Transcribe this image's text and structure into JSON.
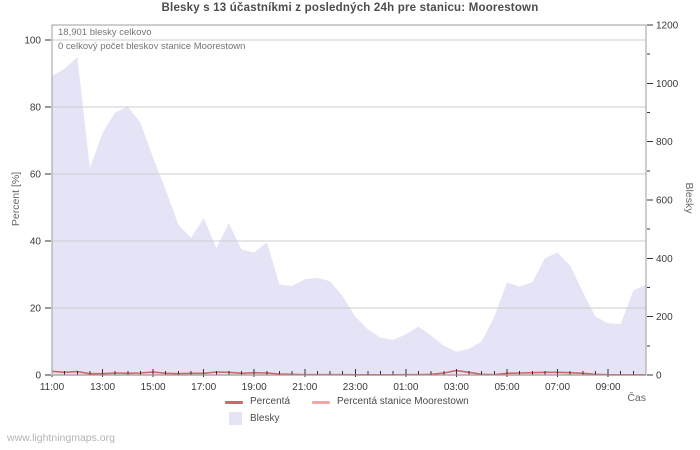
{
  "chart": {
    "title": "Blesky s 13 účastníkmi z posledných 24h pre stanicu: Moorestown",
    "annotation_total": "18,901 blesky celkovo",
    "annotation_station": "0 celkový počet bleskov stanice Moorestown"
  },
  "legend": {
    "percent_label": "Percentá",
    "station_percent_label": "Percentá stanice Moorestown",
    "strikes_label": "Blesky"
  },
  "watermark": "www.lightningmaps.org",
  "colors": {
    "strikes_fill": "#e4e4f6",
    "percent_line": "#cd6868",
    "station_percent_line": "#f3a6a6",
    "gridline": "#cdcdcd",
    "plot_border": "#9e9e9e",
    "tick": "#333333",
    "tick_text": "#3a3a3a"
  },
  "chart_data": {
    "type": "area",
    "title": "Blesky s 13 účastníkmi z posledných 24h pre stanicu: Moorestown",
    "xlabel": "Čas",
    "ylabel_left": "Percent  [%]",
    "ylabel_right": "Blesky",
    "ylim_left": [
      0,
      100
    ],
    "ylim_right": [
      0,
      1200
    ],
    "y_left_ticks": [
      0,
      20,
      40,
      60,
      80,
      100
    ],
    "y_right_ticks": [
      0,
      200,
      400,
      600,
      800,
      1000,
      1200
    ],
    "x_major_tick_labels": [
      "11:00",
      "13:00",
      "15:00",
      "17:00",
      "19:00",
      "21:00",
      "23:00",
      "01:00",
      "03:00",
      "05:00",
      "07:00",
      "09:00"
    ],
    "grid": true,
    "legend_position": "bottom",
    "x": [
      "11:00",
      "11:30",
      "12:00",
      "12:30",
      "13:00",
      "13:30",
      "14:00",
      "14:30",
      "15:00",
      "15:30",
      "16:00",
      "16:30",
      "17:00",
      "17:30",
      "18:00",
      "18:30",
      "19:00",
      "19:30",
      "20:00",
      "20:30",
      "21:00",
      "21:30",
      "22:00",
      "22:30",
      "23:00",
      "23:30",
      "00:00",
      "00:30",
      "01:00",
      "01:30",
      "02:00",
      "02:30",
      "03:00",
      "03:30",
      "04:00",
      "04:30",
      "05:00",
      "05:30",
      "06:00",
      "06:30",
      "07:00",
      "07:30",
      "08:00",
      "08:30",
      "09:00",
      "09:30",
      "10:00",
      "10:30"
    ],
    "series": [
      {
        "name": "Blesky",
        "style": "area",
        "axis": "right",
        "values": [
          1025,
          1050,
          1090,
          710,
          830,
          900,
          920,
          865,
          745,
          635,
          515,
          470,
          538,
          435,
          520,
          430,
          420,
          455,
          310,
          305,
          328,
          333,
          322,
          270,
          200,
          156,
          128,
          120,
          140,
          166,
          135,
          100,
          80,
          90,
          115,
          200,
          318,
          303,
          318,
          400,
          420,
          375,
          285,
          200,
          178,
          175,
          290,
          310
        ]
      },
      {
        "name": "Percentá",
        "style": "line",
        "axis": "left",
        "values": [
          1.1,
          0.8,
          1.0,
          0.4,
          0.4,
          0.6,
          0.5,
          0.6,
          0.9,
          0.5,
          0.4,
          0.5,
          0.5,
          0.9,
          0.8,
          0.5,
          0.7,
          0.6,
          0.3,
          0.2,
          0.1,
          0.1,
          0.1,
          0.1,
          0.05,
          0.05,
          0.05,
          0.05,
          0.1,
          0.1,
          0.2,
          0.6,
          1.3,
          0.8,
          0.2,
          0.1,
          0.5,
          0.6,
          0.7,
          0.8,
          0.8,
          0.7,
          0.5,
          0.2,
          0.05,
          0.05,
          0.05,
          0.05
        ]
      },
      {
        "name": "Percentá stanice Moorestown",
        "style": "line",
        "axis": "left",
        "values": [
          0,
          0,
          0,
          0,
          0,
          0,
          0,
          0,
          0,
          0,
          0,
          0,
          0,
          0,
          0,
          0,
          0,
          0,
          0,
          0,
          0,
          0,
          0,
          0,
          0,
          0,
          0,
          0,
          0,
          0,
          0,
          0,
          0,
          0,
          0,
          0,
          0,
          0,
          0,
          0,
          0,
          0,
          0,
          0,
          0,
          0,
          0,
          0
        ]
      }
    ]
  }
}
